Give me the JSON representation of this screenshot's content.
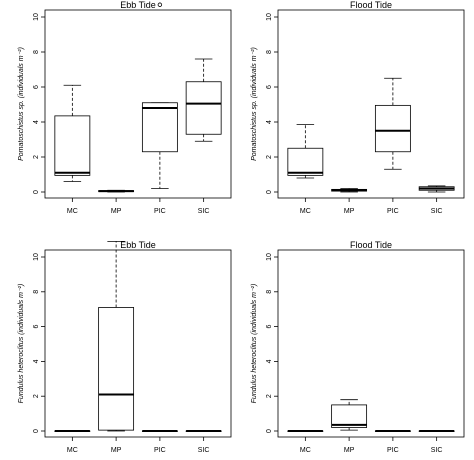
{
  "chart_data": [
    {
      "type": "box",
      "title": "Ebb Tide",
      "ylabel": "Pomatoschistus sp. (individuals m⁻²)",
      "categories": [
        "MC",
        "MP",
        "PIC",
        "SIC"
      ],
      "ylim": [
        0,
        10
      ],
      "yticks": [
        "0",
        "2",
        "4",
        "6",
        "8",
        "10"
      ],
      "boxes": [
        {
          "min": 0.6,
          "q1": 0.95,
          "median": 1.1,
          "q3": 4.35,
          "max": 6.1,
          "outliers": []
        },
        {
          "min": 0.0,
          "q1": 0.02,
          "median": 0.05,
          "q3": 0.08,
          "max": 0.1,
          "outliers": []
        },
        {
          "min": 0.2,
          "q1": 2.3,
          "median": 4.8,
          "q3": 5.1,
          "max": 5.1,
          "outliers": [
            10.7
          ]
        },
        {
          "min": 2.9,
          "q1": 3.3,
          "median": 5.05,
          "q3": 6.3,
          "max": 7.6,
          "outliers": []
        }
      ]
    },
    {
      "type": "box",
      "title": "Flood Tide",
      "ylabel": "Pomatoschistus sp. (individuals m⁻²)",
      "categories": [
        "MC",
        "MP",
        "PIC",
        "SIC"
      ],
      "ylim": [
        0,
        10
      ],
      "yticks": [
        "0",
        "2",
        "4",
        "6",
        "8",
        "10"
      ],
      "boxes": [
        {
          "min": 0.8,
          "q1": 0.95,
          "median": 1.1,
          "q3": 2.5,
          "max": 3.85,
          "outliers": []
        },
        {
          "min": 0.0,
          "q1": 0.05,
          "median": 0.1,
          "q3": 0.15,
          "max": 0.2,
          "outliers": []
        },
        {
          "min": 1.3,
          "q1": 2.3,
          "median": 3.5,
          "q3": 4.95,
          "max": 6.5,
          "outliers": []
        },
        {
          "min": 0.0,
          "q1": 0.1,
          "median": 0.2,
          "q3": 0.3,
          "max": 0.35,
          "outliers": []
        }
      ]
    },
    {
      "type": "box",
      "title": "Ebb Tide",
      "ylabel": "Fundulus heteroclitus (individuals m⁻²)",
      "categories": [
        "MC",
        "MP",
        "PIC",
        "SIC"
      ],
      "ylim": [
        0,
        10
      ],
      "yticks": [
        "0",
        "2",
        "4",
        "6",
        "8",
        "10"
      ],
      "boxes": [
        {
          "min": 0,
          "q1": 0,
          "median": 0,
          "q3": 0,
          "max": 0,
          "outliers": []
        },
        {
          "min": 0.0,
          "q1": 0.05,
          "median": 2.1,
          "q3": 7.1,
          "max": 10.9,
          "outliers": []
        },
        {
          "min": 0,
          "q1": 0,
          "median": 0,
          "q3": 0,
          "max": 0,
          "outliers": []
        },
        {
          "min": 0,
          "q1": 0,
          "median": 0,
          "q3": 0,
          "max": 0,
          "outliers": []
        }
      ]
    },
    {
      "type": "box",
      "title": "Flood Tide",
      "ylabel": "Fundulus heteroclitus (individuals m⁻²)",
      "categories": [
        "MC",
        "MP",
        "PIC",
        "SIC"
      ],
      "ylim": [
        0,
        10
      ],
      "yticks": [
        "0",
        "2",
        "4",
        "6",
        "8",
        "10"
      ],
      "boxes": [
        {
          "min": 0,
          "q1": 0,
          "median": 0,
          "q3": 0,
          "max": 0,
          "outliers": []
        },
        {
          "min": 0.05,
          "q1": 0.2,
          "median": 0.35,
          "q3": 1.5,
          "max": 1.8,
          "outliers": []
        },
        {
          "min": 0,
          "q1": 0,
          "median": 0,
          "q3": 0,
          "max": 0,
          "outliers": []
        },
        {
          "min": 0,
          "q1": 0,
          "median": 0,
          "q3": 0,
          "max": 0,
          "outliers": []
        }
      ]
    }
  ]
}
